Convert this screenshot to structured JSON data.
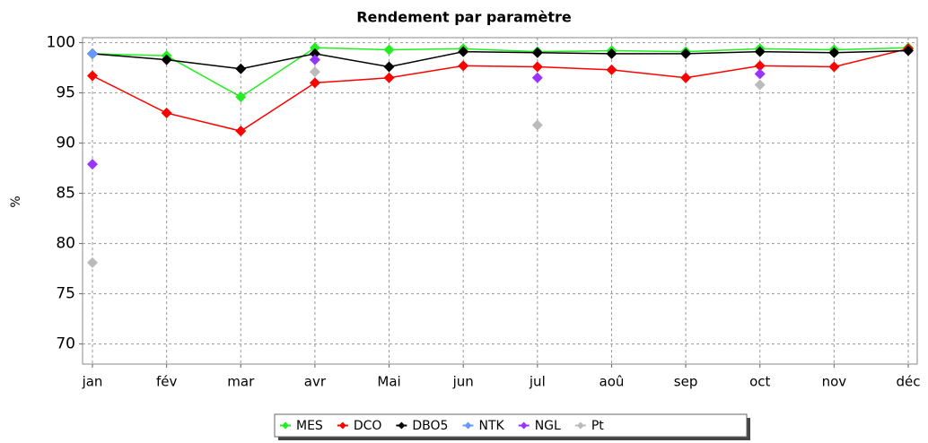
{
  "chart_data": {
    "type": "line",
    "title": "Rendement par paramètre",
    "y_label": "%",
    "categories": [
      "jan",
      "fév",
      "mar",
      "avr",
      "Mai",
      "jun",
      "jul",
      "aoû",
      "sep",
      "oct",
      "nov",
      "déc"
    ],
    "series": [
      {
        "name": "MES",
        "color": "#22ee22",
        "values": [
          98.9,
          98.7,
          94.6,
          99.5,
          99.3,
          99.4,
          99.1,
          99.2,
          99.1,
          99.4,
          99.3,
          99.5
        ]
      },
      {
        "name": "DCO",
        "color": "#ff0000",
        "values": [
          96.7,
          93.0,
          91.2,
          96.0,
          96.5,
          97.7,
          97.6,
          97.3,
          96.5,
          97.7,
          97.6,
          99.4
        ]
      },
      {
        "name": "DBO5",
        "color": "#000000",
        "values": [
          98.9,
          98.3,
          97.4,
          98.9,
          97.6,
          99.1,
          99.0,
          98.9,
          98.9,
          99.1,
          99.0,
          99.2
        ]
      },
      {
        "name": "NTK",
        "color": "#6699ff",
        "values": [
          98.9,
          null,
          null,
          null,
          null,
          null,
          null,
          null,
          null,
          null,
          null,
          null
        ]
      },
      {
        "name": "NGL",
        "color": "#9933ff",
        "values": [
          87.9,
          null,
          null,
          98.3,
          null,
          null,
          96.5,
          null,
          null,
          96.9,
          null,
          null
        ]
      },
      {
        "name": "Pt",
        "color": "#bbbbbb",
        "values": [
          78.1,
          null,
          null,
          97.1,
          null,
          null,
          91.8,
          null,
          null,
          95.8,
          null,
          null
        ]
      }
    ],
    "ylim": [
      68,
      100.5
    ],
    "yticks": [
      70,
      75,
      80,
      85,
      90,
      95,
      100
    ],
    "grid": true
  }
}
